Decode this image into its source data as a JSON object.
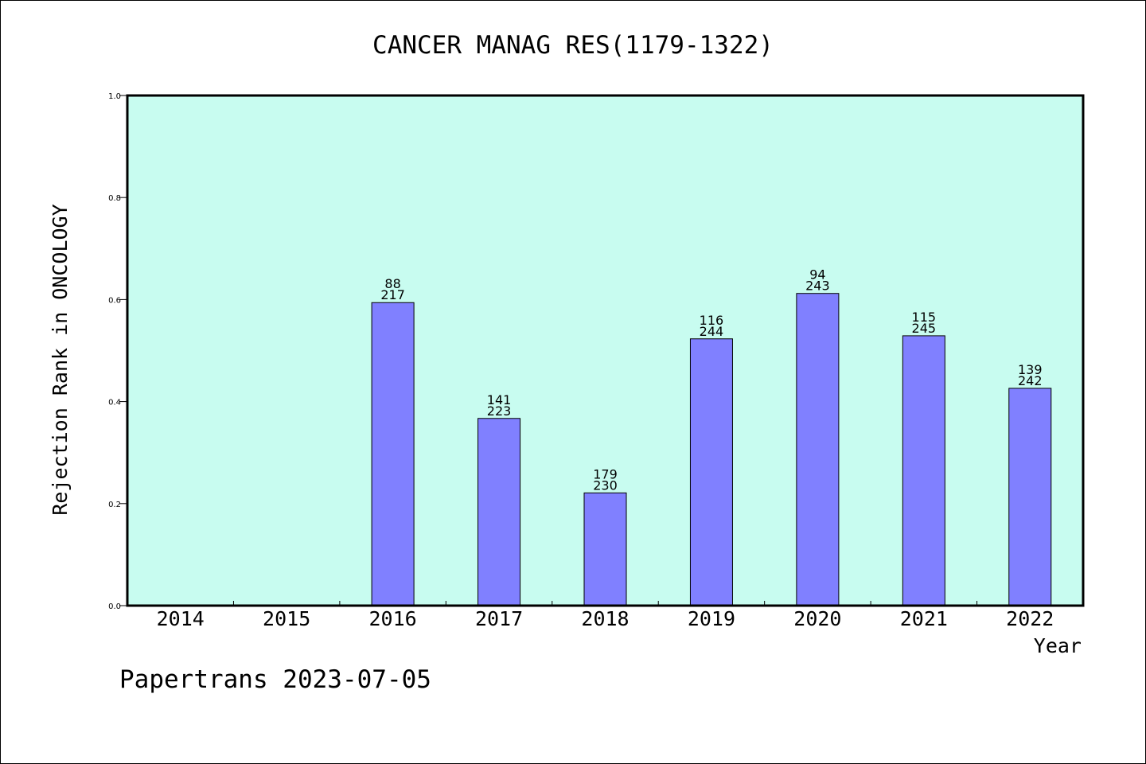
{
  "chart_data": {
    "type": "bar",
    "title": "CANCER MANAG RES(1179-1322)",
    "xlabel": "Year",
    "ylabel": "Rejection Rank in ONCOLOGY",
    "ylim": [
      0,
      1.0
    ],
    "yticks": [
      "0.0",
      "0.2",
      "0.4",
      "0.6",
      "0.8",
      "1.0"
    ],
    "categories": [
      "2014",
      "2015",
      "2016",
      "2017",
      "2018",
      "2019",
      "2020",
      "2021",
      "2022"
    ],
    "values": [
      null,
      null,
      0.594,
      0.367,
      0.221,
      0.523,
      0.612,
      0.529,
      0.426
    ],
    "rank_labels": [
      "",
      "",
      "88",
      "141",
      "179",
      "116",
      "94",
      "115",
      "139"
    ],
    "total_labels": [
      "",
      "",
      "217",
      "223",
      "230",
      "244",
      "243",
      "245",
      "242"
    ],
    "grid": false,
    "legend": "none"
  },
  "footer": "Papertrans 2023-07-05",
  "colors": {
    "plot_background": "#c8fcf0",
    "bar_fill": "#8080ff",
    "bar_stroke": "#000000",
    "page_background": "#ffffff"
  }
}
